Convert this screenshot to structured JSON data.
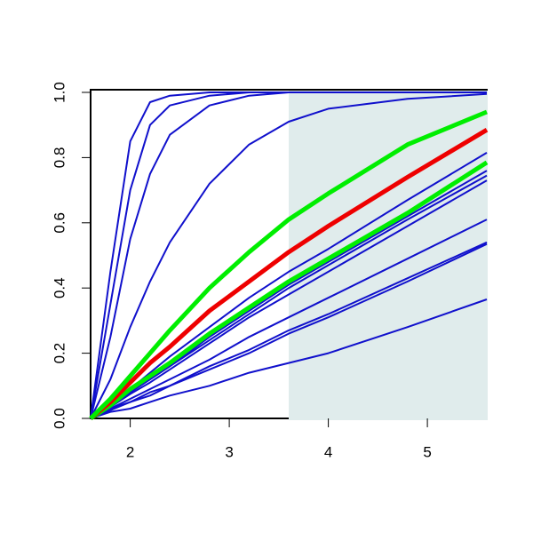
{
  "chart_data": {
    "type": "line",
    "x": [
      1.6,
      1.8,
      2.0,
      2.2,
      2.4,
      2.8,
      3.2,
      3.6,
      4.0,
      4.8,
      5.6
    ],
    "series": [
      {
        "color": "#1010cc",
        "lw": 2,
        "values": [
          0,
          0.45,
          0.85,
          0.97,
          0.99,
          1,
          1,
          1,
          1,
          1,
          1
        ]
      },
      {
        "color": "#1010cc",
        "lw": 2,
        "values": [
          0,
          0.35,
          0.7,
          0.9,
          0.96,
          0.99,
          1,
          1,
          1,
          1,
          1
        ]
      },
      {
        "color": "#1010cc",
        "lw": 2,
        "values": [
          0,
          0.25,
          0.55,
          0.75,
          0.87,
          0.96,
          0.99,
          1,
          1,
          1,
          1
        ]
      },
      {
        "color": "#1010cc",
        "lw": 2,
        "values": [
          0,
          0.12,
          0.28,
          0.42,
          0.54,
          0.72,
          0.84,
          0.91,
          0.95,
          0.98,
          0.995
        ]
      },
      {
        "color": "#1010cc",
        "lw": 2,
        "values": [
          0,
          0.04,
          0.09,
          0.14,
          0.19,
          0.28,
          0.37,
          0.45,
          0.52,
          0.67,
          0.815
        ]
      },
      {
        "color": "#1010cc",
        "lw": 2,
        "values": [
          0,
          0.04,
          0.08,
          0.12,
          0.16,
          0.25,
          0.33,
          0.41,
          0.48,
          0.62,
          0.76
        ]
      },
      {
        "color": "#1010cc",
        "lw": 2,
        "values": [
          0,
          0.04,
          0.08,
          0.12,
          0.16,
          0.24,
          0.32,
          0.4,
          0.47,
          0.61,
          0.745
        ]
      },
      {
        "color": "#1010cc",
        "lw": 2,
        "values": [
          0,
          0.035,
          0.075,
          0.11,
          0.15,
          0.23,
          0.31,
          0.38,
          0.45,
          0.59,
          0.73
        ]
      },
      {
        "color": "#1010cc",
        "lw": 2,
        "values": [
          0,
          0.03,
          0.06,
          0.09,
          0.12,
          0.18,
          0.25,
          0.31,
          0.37,
          0.49,
          0.61
        ]
      },
      {
        "color": "#1010cc",
        "lw": 2,
        "values": [
          0,
          0.03,
          0.05,
          0.08,
          0.1,
          0.16,
          0.21,
          0.27,
          0.32,
          0.43,
          0.54
        ]
      },
      {
        "color": "#1010cc",
        "lw": 2,
        "values": [
          0,
          0.025,
          0.05,
          0.07,
          0.1,
          0.15,
          0.2,
          0.26,
          0.31,
          0.42,
          0.535
        ]
      },
      {
        "color": "#1010cc",
        "lw": 2,
        "values": [
          0,
          0.02,
          0.03,
          0.05,
          0.07,
          0.1,
          0.14,
          0.17,
          0.2,
          0.28,
          0.365
        ]
      },
      {
        "color": "#00ee00",
        "lw": 5,
        "values": [
          0,
          0.04,
          0.09,
          0.13,
          0.17,
          0.26,
          0.34,
          0.42,
          0.49,
          0.63,
          0.785
        ]
      },
      {
        "color": "#ee0000",
        "lw": 5,
        "values": [
          0,
          0.05,
          0.11,
          0.17,
          0.22,
          0.33,
          0.42,
          0.51,
          0.59,
          0.74,
          0.885
        ]
      },
      {
        "color": "#00ee00",
        "lw": 5,
        "values": [
          0,
          0.06,
          0.13,
          0.2,
          0.27,
          0.4,
          0.51,
          0.61,
          0.69,
          0.84,
          0.94
        ]
      }
    ],
    "shade": {
      "xlim": [
        3.6,
        5.6
      ],
      "color": "#e0ecec"
    },
    "xlim": [
      1.6,
      5.6
    ],
    "ylim": [
      0,
      1
    ],
    "xticks": [
      2,
      3,
      4,
      5
    ],
    "yticks": [
      {
        "value": 0,
        "label": "0.0"
      },
      0.2,
      0.4,
      0.6,
      0.8,
      {
        "value": 1,
        "label": "1.0"
      }
    ]
  }
}
